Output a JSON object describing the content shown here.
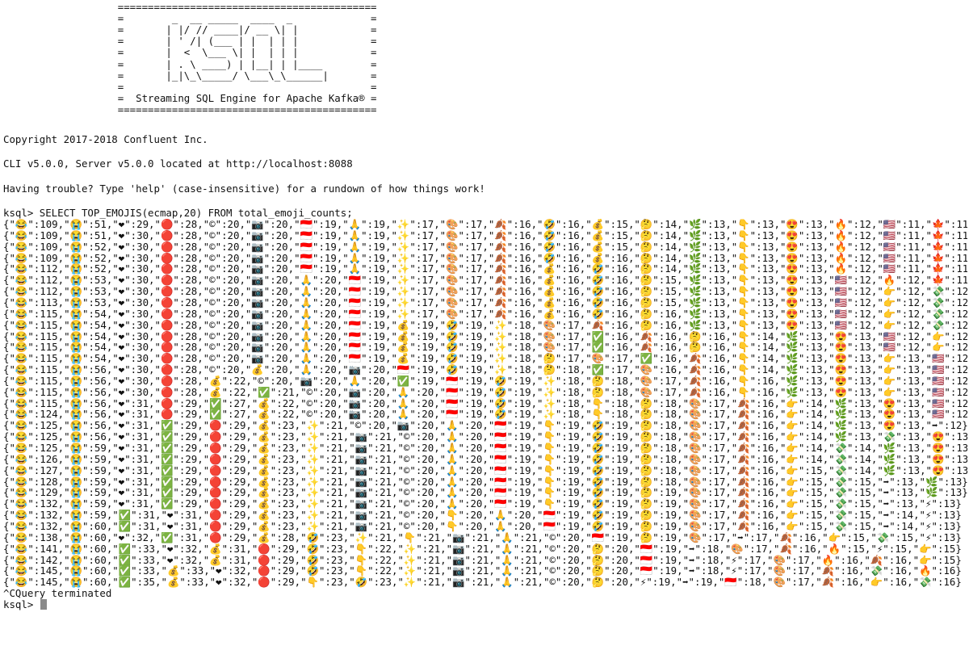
{
  "banner": [
    "                   ===========================================",
    "                   =        _  __ _____  ____  _             =",
    "                   =       | |/ // ____|/ __ \\| |            =",
    "                   =       | ' /| (___ | |  | | |            =",
    "                   =       |  <  \\___ \\| |  | | |            =",
    "                   =       | . \\ ____) | |__| | |____        =",
    "                   =       |_|\\_\\_____/ \\___\\_\\______|       =",
    "                   =                                         =",
    "                   =  Streaming SQL Engine for Apache Kafka® =",
    "                   ==========================================="
  ],
  "copyright": "Copyright 2017-2018 Confluent Inc.",
  "version": "CLI v5.0.0, Server v5.0.0 located at http://localhost:8088",
  "help": "Having trouble? Type 'help' (case-insensitive) for a rundown of how things work!",
  "query": "ksql> SELECT TOP_EMOJIS(ecmap,20) FROM total_emoji_counts;",
  "results": [
    "{\"😂\":109,\"😭\":51,\"❤\":29,\"🔴\":28,\"©\":20,\"📷\":20,\"🇮🇩\":19,\"🙏\":19,\"✨\":17,\"🎨\":17,\"🍂\":16,\"🤣\":16,\"💰\":15,\"🤔\":14,\"🌿\":13,\"👇\":13,\"😍\":13,\"🔥\":12,\"🇺🇸\":11,\"🍁\":11}",
    "{\"😂\":109,\"😭\":51,\"❤\":30,\"🔴\":28,\"©\":20,\"📷\":20,\"🇮🇩\":19,\"🙏\":19,\"✨\":17,\"🎨\":17,\"🍂\":16,\"🤣\":16,\"💰\":15,\"🤔\":14,\"🌿\":13,\"👇\":13,\"😍\":13,\"🔥\":12,\"🇺🇸\":11,\"🍁\":11}",
    "{\"😂\":109,\"😭\":52,\"❤\":30,\"🔴\":28,\"©\":20,\"📷\":20,\"🇮🇩\":19,\"🙏\":19,\"✨\":17,\"🎨\":17,\"🍂\":16,\"🤣\":16,\"💰\":15,\"🤔\":14,\"🌿\":13,\"👇\":13,\"😍\":13,\"🔥\":12,\"🇺🇸\":11,\"🍁\":11}",
    "{\"😂\":109,\"😭\":52,\"❤\":30,\"🔴\":28,\"©\":20,\"📷\":20,\"🇮🇩\":19,\"🙏\":19,\"✨\":17,\"🎨\":17,\"🍂\":16,\"🤣\":16,\"💰\":16,\"🤔\":14,\"🌿\":13,\"👇\":13,\"😍\":13,\"🔥\":12,\"🇺🇸\":11,\"🍁\":11}",
    "{\"😂\":112,\"😭\":52,\"❤\":30,\"🔴\":28,\"©\":20,\"📷\":20,\"🇮🇩\":19,\"🙏\":19,\"✨\":17,\"🎨\":17,\"🍂\":16,\"💰\":16,\"🤣\":16,\"🤔\":14,\"🌿\":13,\"👇\":13,\"😍\":13,\"🔥\":12,\"🇺🇸\":11,\"🍁\":11}",
    "{\"😂\":112,\"😭\":53,\"❤\":30,\"🔴\":28,\"©\":20,\"📷\":20,\"🙏\":20,\"🇮🇩\":19,\"✨\":17,\"🎨\":17,\"🍂\":16,\"💰\":16,\"🤣\":16,\"🤔\":15,\"🌿\":13,\"👇\":13,\"😍\":13,\"🇺🇸\":12,\"🔥\":12,\"🍁\":11}",
    "{\"😂\":112,\"😭\":53,\"❤\":30,\"🔴\":28,\"©\":20,\"📷\":20,\"🙏\":20,\"🇮🇩\":19,\"✨\":17,\"🎨\":17,\"🍂\":16,\"💰\":16,\"🤣\":16,\"🤔\":15,\"🌿\":13,\"👇\":13,\"😍\":13,\"🇺🇸\":12,\"👉\":12,\"💸\":12}",
    "{\"😂\":113,\"😭\":53,\"❤\":30,\"🔴\":28,\"©\":20,\"📷\":20,\"🙏\":20,\"🇮🇩\":19,\"✨\":17,\"🎨\":17,\"🍂\":16,\"💰\":16,\"🤣\":16,\"🤔\":15,\"🌿\":13,\"👇\":13,\"😍\":13,\"🇺🇸\":12,\"👉\":12,\"💸\":12}",
    "{\"😂\":115,\"😭\":54,\"❤\":30,\"🔴\":28,\"©\":20,\"📷\":20,\"🙏\":20,\"🇮🇩\":19,\"✨\":17,\"🎨\":17,\"🍂\":16,\"💰\":16,\"🤣\":16,\"🤔\":16,\"🌿\":13,\"👇\":13,\"😍\":13,\"🇺🇸\":12,\"👉\":12,\"💸\":12}",
    "{\"😂\":115,\"😭\":54,\"❤\":30,\"🔴\":28,\"©\":20,\"📷\":20,\"🙏\":20,\"🇮🇩\":19,\"💰\":19,\"🤣\":19,\"✨\":18,\"🎨\":17,\"🍂\":16,\"🤔\":16,\"🌿\":13,\"👇\":13,\"😍\":13,\"🇺🇸\":12,\"👉\":12,\"💸\":12}",
    "{\"😂\":115,\"😭\":54,\"❤\":30,\"🔴\":28,\"©\":20,\"📷\":20,\"🙏\":20,\"🇮🇩\":19,\"💰\":19,\"🤣\":19,\"✨\":18,\"🎨\":17,\"✅\":16,\"🍂\":16,\"🤔\":16,\"👇\":14,\"🌿\":13,\"😍\":13,\"🇺🇸\":12,\"👉\":12}",
    "{\"😂\":115,\"😭\":54,\"❤\":30,\"🔴\":28,\"©\":20,\"📷\":20,\"🙏\":20,\"🇮🇩\":19,\"💰\":19,\"🤣\":19,\"✨\":18,\"🎨\":17,\"✅\":16,\"🍂\":16,\"🤔\":16,\"👇\":14,\"🌿\":13,\"😍\":13,\"🇺🇸\":12,\"👉\":12}",
    "{\"😂\":115,\"😭\":54,\"❤\":30,\"🔴\":28,\"©\":20,\"📷\":20,\"🙏\":20,\"🇮🇩\":19,\"💰\":19,\"🤣\":19,\"✨\":18,\"🤔\":17,\"🎨\":17,\"✅\":16,\"🍂\":16,\"👇\":14,\"🌿\":13,\"😍\":13,\"👉\":13,\"🇺🇸\":12}",
    "{\"😂\":115,\"😭\":56,\"❤\":30,\"🔴\":28,\"©\":20,\"💰\":20,\"🙏\":20,\"📷\":20,\"🇮🇩\":19,\"🤣\":19,\"✨\":18,\"🤔\":18,\"✅\":17,\"🎨\":16,\"🍂\":16,\"👇\":14,\"🌿\":13,\"😍\":13,\"👉\":13,\"🇺🇸\":12}",
    "{\"😂\":115,\"😭\":56,\"❤\":30,\"🔴\":28,\"💰\":22,\"©\":20,\"📷\":20,\"🙏\":20,\"✅\":19,\"🇮🇩\":19,\"🤣\":19,\"✨\":18,\"🤔\":18,\"🎨\":17,\"🍂\":16,\"👇\":16,\"🌿\":13,\"😍\":13,\"👉\":13,\"🇺🇸\":12}",
    "{\"😂\":115,\"😭\":56,\"❤\":30,\"🔴\":28,\"💰\":22,\"✅\":21,\"©\":20,\"📷\":20,\"🙏\":20,\"🇮🇩\":19,\"🤣\":19,\"✨\":18,\"🤔\":18,\"🎨\":17,\"🍂\":16,\"👇\":16,\"🌿\":13,\"😍\":13,\"👉\":13,\"🇺🇸\":12}",
    "{\"😂\":115,\"😭\":56,\"❤\":31,\"🔴\":29,\"✅\":27,\"💰\":22,\"©\":20,\"📷\":20,\"🙏\":20,\"🇮🇩\":19,\"🤣\":19,\"✨\":18,\"👇\":18,\"🤔\":18,\"🎨\":17,\"🍂\":16,\"👉\":14,\"🌿\":13,\"😍\":13,\"🇺🇸\":12}",
    "{\"😂\":124,\"😭\":56,\"❤\":31,\"🔴\":29,\"✅\":27,\"💰\":22,\"©\":20,\"📷\":20,\"🙏\":20,\"🇮🇩\":19,\"🤣\":19,\"✨\":18,\"👇\":18,\"🤔\":18,\"🎨\":17,\"🍂\":16,\"👉\":14,\"🌿\":13,\"😍\":13,\"🇺🇸\":12}",
    "{\"😂\":125,\"😭\":56,\"❤\":31,\"✅\":29,\"🔴\":29,\"💰\":23,\"✨\":21,\"©\":20,\"📷\":20,\"🙏\":20,\"🇮🇩\":19,\"👇\":19,\"🤣\":19,\"🤔\":18,\"🎨\":17,\"🍂\":16,\"👉\":14,\"🌿\":13,\"😍\":13,\"➡\":12}",
    "{\"😂\":125,\"😭\":56,\"❤\":31,\"✅\":29,\"🔴\":29,\"💰\":23,\"✨\":21,\"📷\":21,\"©\":20,\"🙏\":20,\"🇮🇩\":19,\"👇\":19,\"🤣\":19,\"🤔\":18,\"🎨\":17,\"🍂\":16,\"👉\":14,\"🌿\":13,\"💸\":13,\"😍\":13}",
    "{\"😂\":125,\"😭\":59,\"❤\":31,\"✅\":29,\"🔴\":29,\"💰\":23,\"✨\":21,\"📷\":21,\"©\":20,\"🙏\":20,\"🇮🇩\":19,\"👇\":19,\"🤣\":19,\"🤔\":18,\"🎨\":17,\"🍂\":16,\"👉\":14,\"💸\":14,\"🌿\":13,\"😍\":13}",
    "{\"😂\":126,\"😭\":59,\"❤\":31,\"✅\":29,\"🔴\":29,\"💰\":23,\"✨\":21,\"📷\":21,\"©\":20,\"🙏\":20,\"🇮🇩\":19,\"👇\":19,\"🤣\":19,\"🤔\":18,\"🎨\":17,\"🍂\":16,\"👉\":14,\"💸\":14,\"🌿\":13,\"😍\":13}",
    "{\"😂\":127,\"😭\":59,\"❤\":31,\"✅\":29,\"🔴\":29,\"💰\":23,\"✨\":21,\"📷\":21,\"©\":20,\"🙏\":20,\"🇮🇩\":19,\"👇\":19,\"🤣\":19,\"🤔\":18,\"🎨\":17,\"🍂\":16,\"👉\":15,\"💸\":14,\"🌿\":13,\"😍\":13}",
    "{\"😂\":128,\"😭\":59,\"❤\":31,\"✅\":29,\"🔴\":29,\"💰\":23,\"✨\":21,\"📷\":21,\"©\":20,\"🙏\":20,\"🇮🇩\":19,\"👇\":19,\"🤣\":19,\"🤔\":18,\"🎨\":17,\"🍂\":16,\"👉\":15,\"💸\":15,\"➡\":13,\"🌿\":13}",
    "{\"😂\":129,\"😭\":59,\"❤\":31,\"✅\":29,\"🔴\":29,\"💰\":23,\"✨\":21,\"📷\":21,\"©\":20,\"🙏\":20,\"🇮🇩\":19,\"👇\":19,\"🤣\":19,\"🤔\":19,\"🎨\":17,\"🍂\":16,\"👉\":15,\"💸\":15,\"➡\":13,\"🌿\":13}",
    "{\"😂\":132,\"😭\":59,\"❤\":31,\"✅\":29,\"🔴\":29,\"💰\":23,\"✨\":21,\"📷\":21,\"©\":20,\"🙏\":20,\"🇮🇩\":19,\"👇\":19,\"🤣\":19,\"🤔\":19,\"🎨\":17,\"🍂\":16,\"👉\":15,\"💸\":15,\"➡\":13,\"⚡\":13}",
    "{\"😂\":132,\"😭\":59,\"✅\":31,\"❤\":31,\"🔴\":29,\"💰\":23,\"✨\":21,\"📷\":21,\"©\":20,\"👇\":20,\"🙏\":20,\"🇮🇩\":19,\"🤣\":19,\"🤔\":19,\"🎨\":17,\"🍂\":16,\"👉\":15,\"💸\":15,\"➡\":14,\"⚡\":13}",
    "{\"😂\":132,\"😭\":60,\"✅\":31,\"❤\":31,\"🔴\":29,\"💰\":23,\"✨\":21,\"📷\":21,\"©\":20,\"👇\":20,\"🙏\":20,\"🇮🇩\":19,\"🤣\":19,\"🤔\":19,\"🎨\":17,\"🍂\":16,\"👉\":15,\"💸\":15,\"➡\":14,\"⚡\":13}",
    "{\"😂\":138,\"😭\":60,\"❤\":32,\"✅\":31,\"🔴\":29,\"💰\":28,\"🤣\":23,\"✨\":21,\"👇\":21,\"📷\":21,\"🙏\":21,\"©\":20,\"🇮🇩\":19,\"🤔\":19,\"🎨\":17,\"➡\":17,\"🍂\":16,\"👉\":15,\"💸\":15,\"⚡\":13}",
    "{\"😂\":141,\"😭\":60,\"✅\":33,\"❤\":32,\"💰\":31,\"🔴\":29,\"🤣\":23,\"👇\":22,\"✨\":21,\"📷\":21,\"🙏\":21,\"©\":20,\"🤔\":20,\"🇮🇩\":19,\"➡\":18,\"🎨\":17,\"🍂\":16,\"🔥\":15,\"⚡\":15,\"👉\":15}",
    "{\"😂\":142,\"😭\":60,\"✅\":33,\"❤\":32,\"💰\":31,\"🔴\":29,\"🤣\":23,\"👇\":22,\"✨\":21,\"📷\":21,\"🙏\":21,\"©\":20,\"🤔\":20,\"🇮🇩\":19,\"➡\":18,\"⚡\":17,\"🎨\":17,\"🔥\":16,\"🍂\":16,\"👉\":15}",
    "{\"😂\":145,\"😭\":60,\"✅\":33,\"💰\":33,\"❤\":32,\"🔴\":29,\"🤣\":23,\"👇\":22,\"✨\":21,\"📷\":21,\"🙏\":21,\"©\":20,\"🤔\":20,\"🇮🇩\":19,\"➡\":18,\"⚡\":17,\"🎨\":17,\"🍂\":16,\"💸\":16,\"🔥\":16}",
    "{\"😂\":145,\"😭\":60,\"✅\":35,\"💰\":33,\"❤\":32,\"🔴\":29,\"👇\":23,\"🤣\":23,\"✨\":21,\"📷\":21,\"🙏\":21,\"©\":20,\"🤔\":20,\"⚡\":19,\"➡\":19,\"🇮🇩\":18,\"🎨\":17,\"🍂\":16,\"👉\":16,\"💸\":16}"
  ],
  "terminated": "^CQuery terminated",
  "prompt": "ksql> "
}
